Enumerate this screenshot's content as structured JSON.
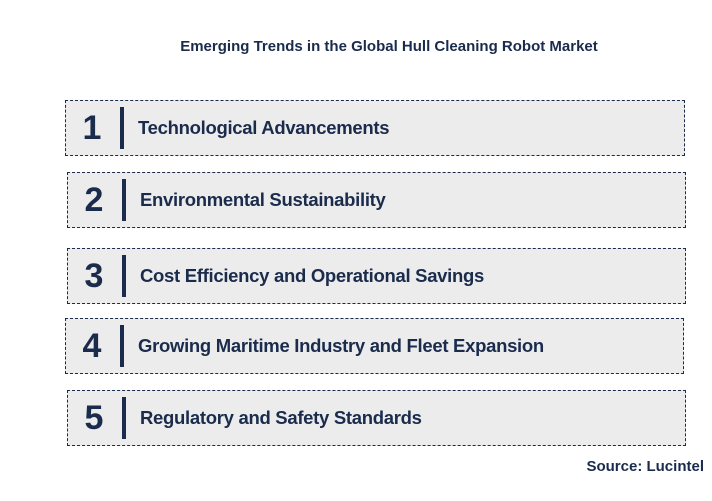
{
  "title": "Emerging Trends in the Global Hull Cleaning Robot Market",
  "items": [
    {
      "number": "1",
      "label": "Technological Advancements"
    },
    {
      "number": "2",
      "label": "Environmental Sustainability"
    },
    {
      "number": "3",
      "label": "Cost Efficiency and Operational Savings"
    },
    {
      "number": "4",
      "label": "Growing Maritime Industry and Fleet Expansion"
    },
    {
      "number": "5",
      "label": "Regulatory and Safety Standards"
    }
  ],
  "source": "Source: Lucintel"
}
